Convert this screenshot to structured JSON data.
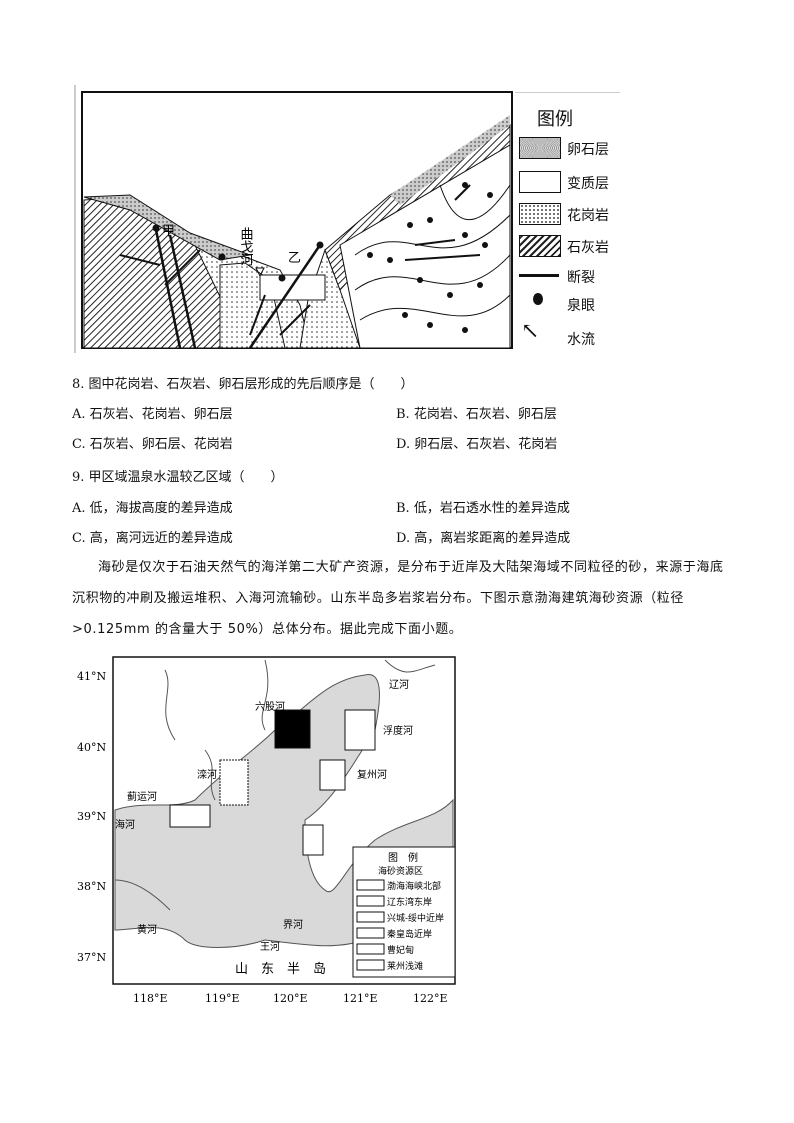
{
  "figure1": {
    "labels": {
      "jia": "甲",
      "yi": "乙",
      "river": "曲戈河"
    },
    "legend_title": "图例",
    "legend": [
      {
        "icon": "pebble-pattern",
        "label": "卵石层"
      },
      {
        "icon": "metamorphic-pattern",
        "label": "变质层"
      },
      {
        "icon": "granite-pattern",
        "label": "花岗岩"
      },
      {
        "icon": "limestone-hatch",
        "label": "石灰岩"
      },
      {
        "icon": "fault-line",
        "label": "断裂"
      },
      {
        "icon": "spring-icon",
        "label": "泉眼"
      },
      {
        "icon": "arrow-icon",
        "label": "水流"
      }
    ]
  },
  "questions": [
    {
      "stem": "8. 图中花岗岩、石灰岩、卵石层形成的先后顺序是（　　）",
      "options": [
        "A. 石灰岩、花岗岩、卵石层",
        "B. 花岗岩、石灰岩、卵石层",
        "C. 石灰岩、卵石层、花岗岩",
        "D. 卵石层、石灰岩、花岗岩"
      ]
    },
    {
      "stem": "9. 甲区域温泉水温较乙区域（　　）",
      "options": [
        "A. 低，海拔高度的差异造成",
        "B. 低，岩石透水性的差异造成",
        "C. 高，离河远近的差异造成",
        "D. 高，离岩浆距离的差异造成"
      ]
    }
  ],
  "passage": "海砂是仅次于石油天然气的海洋第二大矿产资源，是分布于近岸及大陆架海域不同粒径的砂，来源于海底沉积物的冲刷及搬运堆积、入海河流输砂。山东半岛多岩浆岩分布。下图示意渤海建筑海砂资源（粒径>0.125mm 的含量大于 50%）总体分布。据此完成下面小题。",
  "map": {
    "lat_labels": [
      "41°N",
      "40°N",
      "39°N",
      "38°N",
      "37°N"
    ],
    "lon_labels": [
      "118°E",
      "119°E",
      "120°E",
      "121°E",
      "122°E"
    ],
    "places": {
      "liaohe": "辽河",
      "liuguhe": "六股河",
      "fuduhe": "浮度河",
      "luanhe": "滦河",
      "fuzhouhe": "复州河",
      "jiyunhe": "蓟运河",
      "haihe": "海河",
      "huanghe": "黄河",
      "jiehe": "界河",
      "wanghe": "王河",
      "peninsula": "山　东　半　岛"
    },
    "legend_title": "图　例",
    "legend_subtitle": "海砂资源区",
    "legend": [
      "渤海海峡北部",
      "辽东湾东岸",
      "兴城-绥中近岸",
      "秦皇岛近岸",
      "曹妃甸",
      "莱州浅滩"
    ]
  }
}
